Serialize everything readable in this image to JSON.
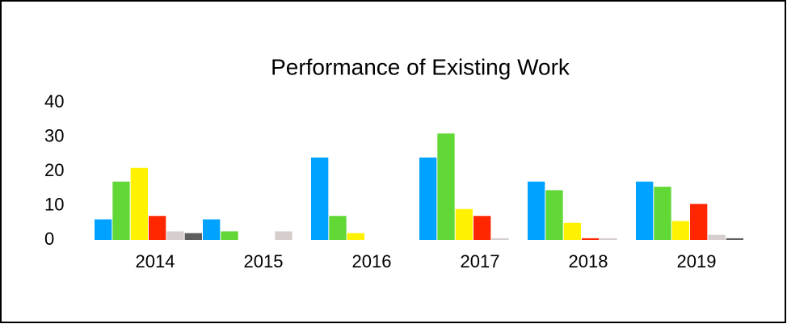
{
  "chart_data": {
    "type": "bar",
    "title": "Performance of Existing Work",
    "categories": [
      "2014",
      "2015",
      "2016",
      "2017",
      "2018",
      "2019"
    ],
    "series": [
      {
        "color": "#00a2ff",
        "values": [
          6,
          6,
          24,
          24,
          17,
          17
        ]
      },
      {
        "color": "#61d836",
        "values": [
          17,
          2.5,
          7,
          31,
          14.5,
          15.5
        ]
      },
      {
        "color": "#fff200",
        "values": [
          21,
          0,
          2,
          9,
          5,
          5.5
        ]
      },
      {
        "color": "#ff2600",
        "values": [
          7,
          0,
          0,
          7,
          0.5,
          10.5
        ]
      },
      {
        "color": "#d6cdcd",
        "values": [
          2.5,
          2.5,
          0,
          0.5,
          0.5,
          1.5
        ]
      },
      {
        "color": "#5e5e5e",
        "values": [
          2,
          0,
          0,
          0,
          0,
          0.5
        ]
      }
    ],
    "ylim": [
      0,
      40
    ],
    "yticks": [
      0,
      10,
      20,
      30,
      40
    ],
    "grid": false
  }
}
